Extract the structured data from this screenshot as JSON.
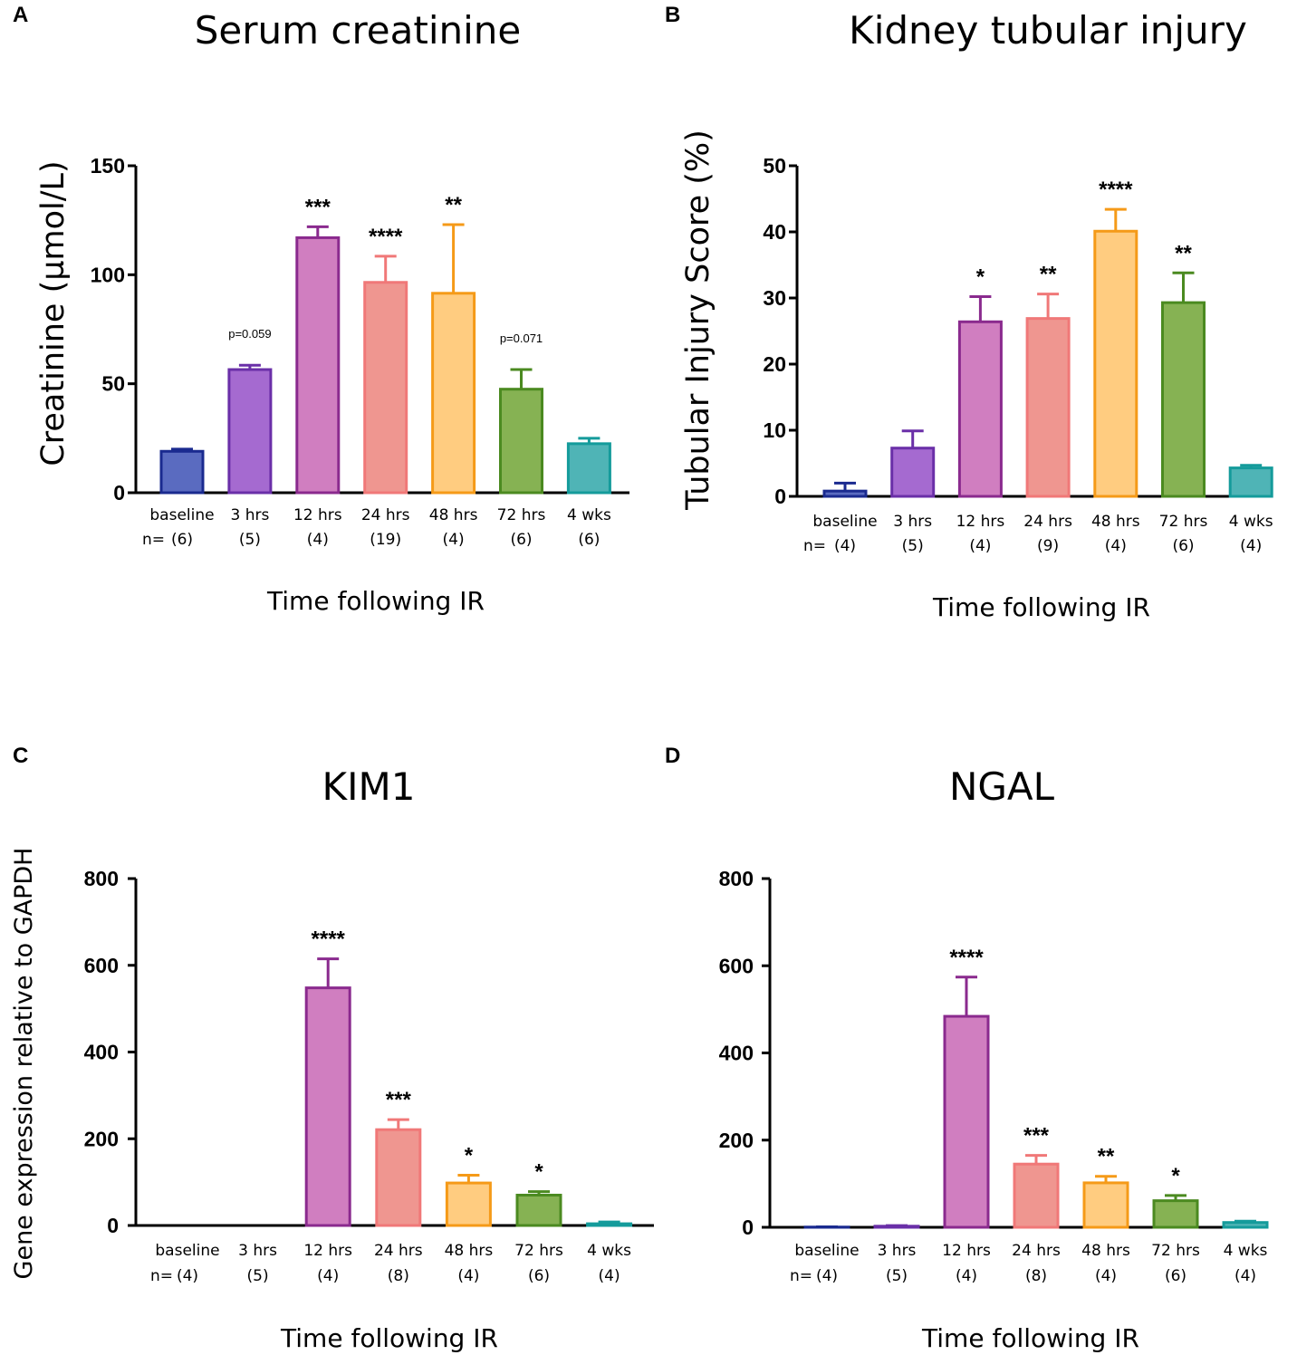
{
  "panels": [
    {
      "letter": "A",
      "title": "Serum creatinine",
      "ylabel": "Creatinine (µmol/L)",
      "xlabel": "Time following IR",
      "n_prefix": "n=",
      "yticks": [
        "0",
        "50",
        "100",
        "150"
      ],
      "categories": [
        "baseline",
        "3 hrs",
        "12 hrs",
        "24 hrs",
        "48 hrs",
        "72 hrs",
        "4 wks"
      ],
      "n": [
        "(6)",
        "(5)",
        "(4)",
        "(19)",
        "(4)",
        "(6)",
        "(6)"
      ],
      "significance": [
        "",
        "p=0.059",
        "***",
        "****",
        "**",
        "p=0.071",
        ""
      ]
    },
    {
      "letter": "B",
      "title": "Kidney tubular injury",
      "ylabel": "Tubular Injury Score (%)",
      "xlabel": "Time following IR",
      "n_prefix": "n=",
      "yticks": [
        "0",
        "10",
        "20",
        "30",
        "40",
        "50"
      ],
      "categories": [
        "baseline",
        "3 hrs",
        "12 hrs",
        "24 hrs",
        "48 hrs",
        "72 hrs",
        "4 wks"
      ],
      "n": [
        "(4)",
        "(5)",
        "(4)",
        "(9)",
        "(4)",
        "(6)",
        "(4)"
      ],
      "significance": [
        "",
        "",
        "*",
        "**",
        "****",
        "**",
        ""
      ]
    },
    {
      "letter": "C",
      "title": "KIM1",
      "ylabel": "Gene expression relative to GAPDH",
      "xlabel": "Time following IR",
      "n_prefix": "n=",
      "yticks": [
        "0",
        "200",
        "400",
        "600",
        "800"
      ],
      "categories": [
        "baseline",
        "3 hrs",
        "12 hrs",
        "24 hrs",
        "48 hrs",
        "72 hrs",
        "4 wks"
      ],
      "n": [
        "(4)",
        "(5)",
        "(4)",
        "(8)",
        "(4)",
        "(6)",
        "(4)"
      ],
      "significance": [
        "",
        "",
        "****",
        "***",
        "*",
        "*",
        ""
      ]
    },
    {
      "letter": "D",
      "title": "NGAL",
      "ylabel": "",
      "xlabel": "Time following IR",
      "n_prefix": "n=",
      "yticks": [
        "0",
        "200",
        "400",
        "600",
        "800"
      ],
      "categories": [
        "baseline",
        "3 hrs",
        "12 hrs",
        "24 hrs",
        "48 hrs",
        "72 hrs",
        "4 wks"
      ],
      "n": [
        "(4)",
        "(5)",
        "(4)",
        "(8)",
        "(4)",
        "(6)",
        "(4)"
      ],
      "significance": [
        "",
        "",
        "****",
        "***",
        "**",
        "*",
        ""
      ]
    }
  ],
  "chart_data": [
    {
      "type": "bar",
      "title": "Serum creatinine",
      "xlabel": "Time following IR",
      "ylabel": "Creatinine (µmol/L)",
      "categories": [
        "baseline",
        "3 hrs",
        "12 hrs",
        "24 hrs",
        "48 hrs",
        "72 hrs",
        "4 wks"
      ],
      "values": [
        19,
        56.5,
        117,
        96.5,
        91.5,
        47.5,
        22.5
      ],
      "errors": [
        1,
        2,
        5,
        12,
        31.5,
        9,
        2.5
      ],
      "ylim": [
        0,
        150
      ]
    },
    {
      "type": "bar",
      "title": "Kidney tubular injury",
      "xlabel": "Time following IR",
      "ylabel": "Tubular Injury Score (%)",
      "categories": [
        "baseline",
        "3 hrs",
        "12 hrs",
        "24 hrs",
        "48 hrs",
        "72 hrs",
        "4 wks"
      ],
      "values": [
        0.8,
        7.3,
        26.4,
        26.9,
        40.1,
        29.3,
        4.3
      ],
      "errors": [
        1.2,
        2.6,
        3.8,
        3.7,
        3.3,
        4.5,
        0.4
      ],
      "ylim": [
        0,
        50
      ]
    },
    {
      "type": "bar",
      "title": "KIM1",
      "xlabel": "Time following IR",
      "ylabel": "Gene expression relative to GAPDH",
      "categories": [
        "baseline",
        "3 hrs",
        "12 hrs",
        "24 hrs",
        "48 hrs",
        "72 hrs",
        "4 wks"
      ],
      "values": [
        0,
        0,
        548,
        221,
        98,
        70,
        4
      ],
      "errors": [
        0,
        0,
        67,
        23,
        18,
        8,
        4
      ],
      "ylim": [
        0,
        800
      ]
    },
    {
      "type": "bar",
      "title": "NGAL",
      "xlabel": "Time following IR",
      "ylabel": "",
      "categories": [
        "baseline",
        "3 hrs",
        "12 hrs",
        "24 hrs",
        "48 hrs",
        "72 hrs",
        "4 wks"
      ],
      "values": [
        0.5,
        2.5,
        484,
        145,
        102,
        61,
        11
      ],
      "errors": [
        0.5,
        1.5,
        90,
        20,
        15,
        12,
        3
      ],
      "ylim": [
        0,
        800
      ]
    }
  ],
  "colors": {
    "fills": [
      "#5a6bc0",
      "#a56ad0",
      "#d07ec0",
      "#ef9690",
      "#ffcc80",
      "#86b253",
      "#4fb4b6"
    ],
    "strokes": [
      "#1a2a8f",
      "#6a2fa8",
      "#8a2a8e",
      "#f07878",
      "#f59a18",
      "#4b8a20",
      "#149b9b"
    ]
  }
}
